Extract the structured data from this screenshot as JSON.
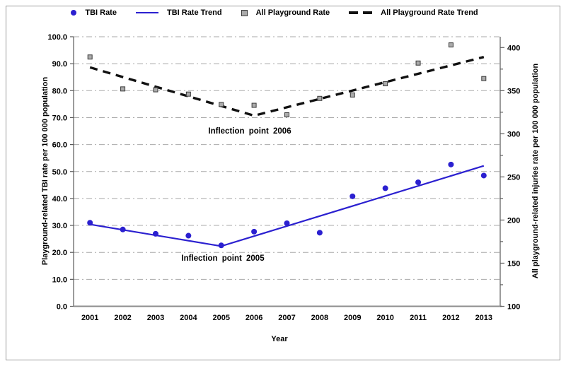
{
  "figure": {
    "background": "#ffffff",
    "border_color": "#9b9b9b"
  },
  "colors": {
    "tbi_blue": "#2b20d0",
    "trend_black": "#111111",
    "square_fill": "#ababab",
    "square_edge": "#3a3a3a",
    "gridline": "#a9a9a9",
    "spine": "#5a5a5a",
    "bottom_spine": "#8c8c8c"
  },
  "legend": {
    "items": [
      {
        "label": "TBI Rate",
        "marker": "circle-icon",
        "color": "#2b20d0"
      },
      {
        "label": "TBI Rate Trend",
        "marker": "line-icon",
        "color": "#2b20d0"
      },
      {
        "label": "All Playground Rate",
        "marker": "square-icon",
        "color": "#ababab"
      },
      {
        "label": "All Playground Rate Trend",
        "marker": "dashed-line-icon",
        "color": "#111111"
      }
    ]
  },
  "chart_data": {
    "type": "line",
    "title": "",
    "xlabel": "Year",
    "grid": "horizontal dash-dot",
    "legend_position": "top",
    "x": [
      2001,
      2002,
      2003,
      2004,
      2005,
      2006,
      2007,
      2008,
      2009,
      2010,
      2011,
      2012,
      2013
    ],
    "left_axis": {
      "title": "Playground-related TBI rate per 100 000 population",
      "min": 0,
      "max": 100,
      "tick_step": 10,
      "tick_labels": [
        "0.0",
        "10.0",
        "20.0",
        "30.0",
        "40.0",
        "50.0",
        "60.0",
        "70.0",
        "80.0",
        "90.0",
        "100.0"
      ]
    },
    "right_axis": {
      "title": "All playground-related injuries rate per 100 000 population",
      "min": 100,
      "max": 412.5,
      "major_tick_step": 50,
      "minor_tick_step": 25,
      "tick_labels": [
        "100",
        "150",
        "200",
        "250",
        "300",
        "350",
        "400"
      ]
    },
    "series": [
      {
        "name": "TBI Rate",
        "axis": "left",
        "style": "scatter-circle",
        "color": "#2b20d0",
        "values": [
          31.0,
          28.5,
          26.9,
          26.2,
          22.6,
          27.7,
          30.8,
          27.3,
          40.8,
          43.8,
          46.0,
          52.6,
          48.5
        ]
      },
      {
        "name": "TBI Rate Trend",
        "axis": "left",
        "style": "solid-line",
        "color": "#2b20d0",
        "points": [
          [
            2001,
            30.4
          ],
          [
            2005,
            22.3
          ],
          [
            2013,
            52.1
          ]
        ]
      },
      {
        "name": "All Playground Rate",
        "axis": "right",
        "style": "scatter-square",
        "color": "#ababab",
        "values": [
          389,
          352,
          351,
          346,
          334,
          333,
          322,
          341,
          345,
          358,
          382,
          403,
          364
        ]
      },
      {
        "name": "All Playground Rate Trend",
        "axis": "right",
        "style": "dashed-line",
        "color": "#111111",
        "points": [
          [
            2001,
            377
          ],
          [
            2006,
            321
          ],
          [
            2013,
            389
          ]
        ]
      }
    ],
    "annotations": [
      {
        "text": "Inflection point 2006",
        "near_year": 2006,
        "y_left_units": 64.8
      },
      {
        "text": "Inflection point 2005",
        "near_year": 2005,
        "y_left_units": 17.6
      }
    ]
  }
}
